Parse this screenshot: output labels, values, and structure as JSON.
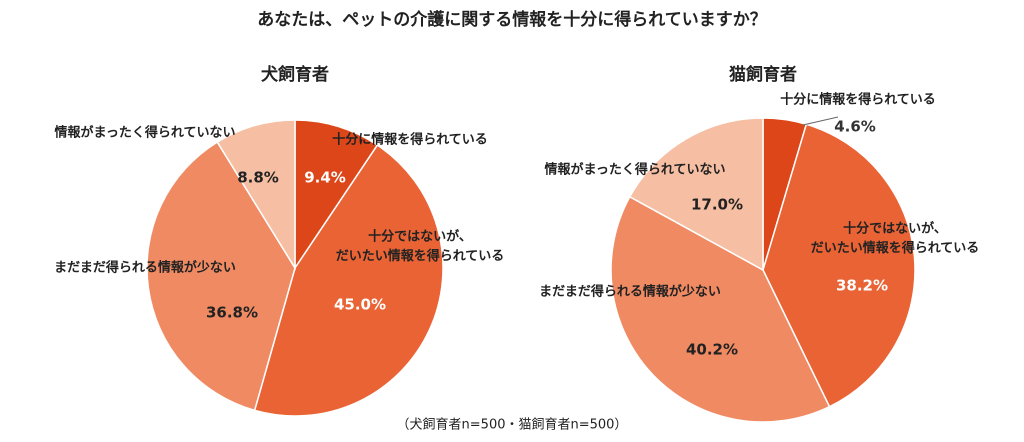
{
  "title": "あなたは、ペットの介護に関する情報を十分に得られていますか？",
  "note": "（犬飼育者n=500・猫飼育者n=500）",
  "chart_data": [
    {
      "type": "pie",
      "title": "犬飼育者",
      "categories": [
        "十分に情報を得られている",
        "十分ではないが、\nだいたい情報を得られている",
        "まだまだ得られる情報が少ない",
        "情報がまったく得られていない"
      ],
      "values": [
        9.4,
        45.0,
        36.8,
        8.8
      ],
      "value_labels": [
        "9.4%",
        "45.0%",
        "36.8%",
        "8.8%"
      ],
      "colors": [
        "#dc4619",
        "#e96335",
        "#ef8a62",
        "#f6bea2"
      ]
    },
    {
      "type": "pie",
      "title": "猫飼育者",
      "categories": [
        "十分に情報を得られている",
        "十分ではないが、\nだいたい情報を得られている",
        "まだまだ得られる情報が少ない",
        "情報がまったく得られていない"
      ],
      "values": [
        4.6,
        38.2,
        40.2,
        17.0
      ],
      "value_labels": [
        "4.6%",
        "38.2%",
        "40.2%",
        "17.0%"
      ],
      "colors": [
        "#dc4619",
        "#e96335",
        "#ef8a62",
        "#f6bea2"
      ]
    }
  ]
}
